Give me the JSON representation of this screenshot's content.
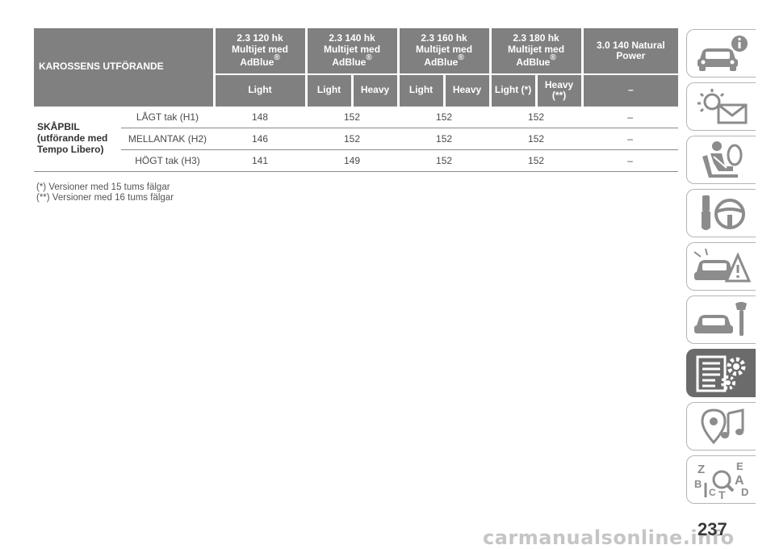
{
  "table": {
    "corner_header": "KAROSSENS UTFÖRANDE",
    "engines": [
      {
        "line1": "2.3 120 hk",
        "line2": "Multijet med",
        "line3": "AdBlue",
        "mark": "®"
      },
      {
        "line1": "2.3 140 hk",
        "line2": "Multijet med",
        "line3": "AdBlue",
        "mark": "®"
      },
      {
        "line1": "2.3 160 hk",
        "line2": "Multijet med",
        "line3": "AdBlue",
        "mark": "®"
      },
      {
        "line1": "2.3 180 hk",
        "line2": "Multijet med",
        "line3": "AdBlue",
        "mark": "®"
      },
      {
        "line1": "3.0 140 Natural",
        "line2": "Power",
        "line3": "",
        "mark": ""
      }
    ],
    "subheaders": [
      "Light",
      "Light",
      "Heavy",
      "Light",
      "Heavy",
      "Light (*)",
      "Heavy (**)",
      "–"
    ],
    "group_label": "SKÅPBIL (utförande med Tempo Libero)",
    "rows": [
      {
        "label": "LÅGT tak (H1)",
        "values": [
          "148",
          "152",
          "152",
          "152",
          "–"
        ]
      },
      {
        "label": "MELLANTAK (H2)",
        "values": [
          "146",
          "152",
          "152",
          "152",
          "–"
        ]
      },
      {
        "label": "HÖGT tak (H3)",
        "values": [
          "141",
          "149",
          "152",
          "152",
          "–"
        ]
      }
    ]
  },
  "footnotes": [
    "(*) Versioner med 15 tums fälgar",
    "(**) Versioner med 16 tums fälgar"
  ],
  "side_tabs": [
    {
      "icon": "car-info-icon",
      "active": false
    },
    {
      "icon": "warning-lights-message-icon",
      "active": false
    },
    {
      "icon": "airbag-seat-icon",
      "active": false
    },
    {
      "icon": "key-steering-wheel-icon",
      "active": false
    },
    {
      "icon": "car-breakdown-icon",
      "active": false
    },
    {
      "icon": "car-maintenance-wrench-icon",
      "active": false
    },
    {
      "icon": "technical-data-gears-icon",
      "active": true
    },
    {
      "icon": "multimedia-music-icon",
      "active": false
    },
    {
      "icon": "alphabetical-index-icon",
      "active": false
    }
  ],
  "page_number": "237",
  "watermark": "carmanualsonline.info",
  "colors": {
    "header_bg": "#808080",
    "tab_active": "#6b6b6b",
    "icon": "#8c8c8c"
  }
}
